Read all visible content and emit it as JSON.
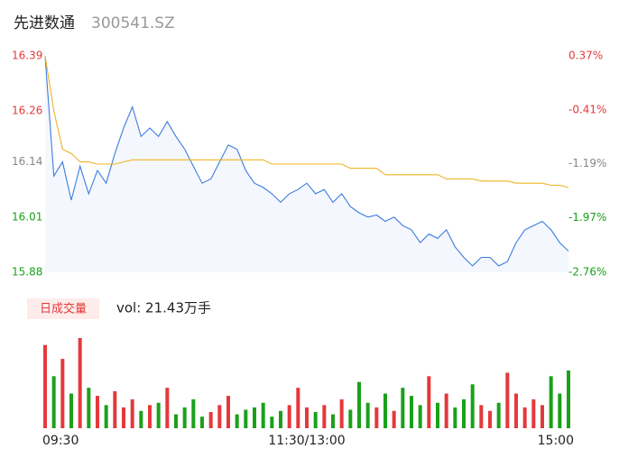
{
  "header": {
    "title": "先进数通",
    "code": "300541.SZ"
  },
  "chart_data": [
    {
      "type": "line",
      "x": [
        0,
        4,
        8,
        12,
        16,
        20,
        24,
        28,
        32,
        36,
        40,
        44,
        48,
        52,
        56,
        60,
        64,
        68,
        72,
        76,
        80,
        84,
        88,
        92,
        96,
        100,
        104,
        108,
        112,
        116,
        120,
        124,
        128,
        132,
        136,
        140,
        144,
        148,
        152,
        156,
        160,
        164,
        168,
        172,
        176,
        180,
        184,
        188,
        192,
        196,
        200,
        204,
        208,
        212,
        216,
        220,
        224,
        228,
        232,
        236,
        240
      ],
      "xlim": [
        0,
        240
      ],
      "series": [
        {
          "color": "#3b7ddd",
          "values": [
            16.39,
            16.107,
            16.14,
            16.05,
            16.13,
            16.065,
            16.12,
            16.09,
            16.16,
            16.22,
            16.27,
            16.2,
            16.22,
            16.2,
            16.235,
            16.2,
            16.17,
            16.13,
            16.09,
            16.1,
            16.14,
            16.18,
            16.17,
            16.12,
            16.09,
            16.08,
            16.065,
            16.045,
            16.065,
            16.075,
            16.09,
            16.065,
            16.075,
            16.045,
            16.065,
            16.035,
            16.02,
            16.01,
            16.015,
            16.0,
            16.01,
            15.99,
            15.98,
            15.95,
            15.97,
            15.96,
            15.98,
            15.94,
            15.915,
            15.895,
            15.915,
            15.915,
            15.895,
            15.905,
            15.95,
            15.98,
            15.99,
            16.0,
            15.98,
            15.95,
            15.93
          ]
        },
        {
          "color": "#f0b323",
          "values": [
            16.39,
            16.26,
            16.17,
            16.16,
            16.14,
            16.14,
            16.135,
            16.135,
            16.135,
            16.14,
            16.145,
            16.145,
            16.145,
            16.145,
            16.145,
            16.145,
            16.145,
            16.145,
            16.145,
            16.145,
            16.145,
            16.145,
            16.145,
            16.145,
            16.145,
            16.145,
            16.135,
            16.135,
            16.135,
            16.135,
            16.135,
            16.135,
            16.135,
            16.135,
            16.135,
            16.125,
            16.125,
            16.125,
            16.125,
            16.11,
            16.11,
            16.11,
            16.11,
            16.11,
            16.11,
            16.11,
            16.1,
            16.1,
            16.1,
            16.1,
            16.095,
            16.095,
            16.095,
            16.095,
            16.09,
            16.09,
            16.09,
            16.09,
            16.085,
            16.085,
            16.08
          ]
        }
      ],
      "ylim": [
        15.88,
        16.39
      ],
      "yticks": [
        16.39,
        16.26,
        16.14,
        16.01,
        15.88
      ],
      "y2lim": [
        -2.76,
        0.37
      ],
      "y2ticks": [
        {
          "value": 0.37,
          "label": "0.37%"
        },
        {
          "value": -0.41,
          "label": "-0.41%"
        },
        {
          "value": -1.19,
          "label": "-1.19%"
        },
        {
          "value": -1.97,
          "label": "-1.97%"
        },
        {
          "value": -2.76,
          "label": "-2.76%"
        }
      ],
      "up_color": "#e4393c",
      "flat_color": "#888888",
      "down_color": "#1aa11a"
    },
    {
      "type": "bar",
      "title": "日成交量",
      "subtitle": "vol: 21.43万手",
      "values": [
        72,
        45,
        60,
        30,
        78,
        35,
        28,
        20,
        32,
        18,
        25,
        15,
        20,
        22,
        35,
        12,
        18,
        25,
        10,
        14,
        20,
        28,
        12,
        16,
        18,
        22,
        10,
        15,
        20,
        35,
        18,
        14,
        20,
        12,
        25,
        16,
        40,
        22,
        18,
        30,
        15,
        35,
        28,
        20,
        45,
        22,
        30,
        18,
        25,
        38,
        20,
        15,
        22,
        48,
        30,
        18,
        25,
        20,
        45,
        30,
        50
      ],
      "xticks": [
        {
          "value": 0,
          "label": "09:30"
        },
        {
          "value": 120,
          "label": "11:30/13:00"
        },
        {
          "value": 240,
          "label": "15:00"
        }
      ],
      "up_color": "#e4393c",
      "down_color": "#1aa11a"
    }
  ]
}
